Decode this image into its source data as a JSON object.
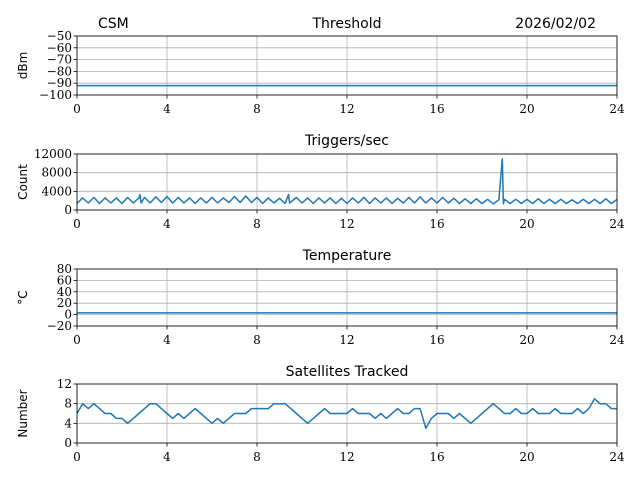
{
  "header": {
    "left": "CSM",
    "right": "2026/02/02"
  },
  "colors": {
    "line": "#1f77b4"
  },
  "chart_data": [
    {
      "type": "line",
      "title": "Threshold",
      "ylabel": "dBm",
      "xlim": [
        0,
        24
      ],
      "ylim": [
        -100,
        -50
      ],
      "xticks": [
        "0",
        "4",
        "8",
        "12",
        "16",
        "20",
        "24"
      ],
      "yticks": [
        "−50",
        "−60",
        "−70",
        "−80",
        "−90",
        "−100"
      ],
      "ytick_values": [
        -50,
        -60,
        -70,
        -80,
        -90,
        -100
      ],
      "x": [
        0,
        24
      ],
      "y": [
        -92,
        -92
      ],
      "linewidth": 3
    },
    {
      "type": "line",
      "title": "Triggers/sec",
      "ylabel": "Count",
      "xlim": [
        0,
        24
      ],
      "ylim": [
        0,
        12000
      ],
      "xticks": [
        "0",
        "4",
        "8",
        "12",
        "16",
        "20",
        "24"
      ],
      "yticks": [
        "12000",
        "8000",
        "4000",
        "0"
      ],
      "ytick_values": [
        12000,
        8000,
        4000,
        0
      ],
      "x": [
        0,
        0.25,
        0.5,
        0.75,
        1,
        1.25,
        1.5,
        1.75,
        2,
        2.25,
        2.5,
        2.75,
        2.8,
        2.85,
        3,
        3.25,
        3.5,
        3.75,
        4,
        4.25,
        4.5,
        4.75,
        5,
        5.25,
        5.5,
        5.75,
        6,
        6.25,
        6.5,
        6.75,
        7,
        7.25,
        7.5,
        7.75,
        8,
        8.25,
        8.5,
        8.75,
        9,
        9.25,
        9.4,
        9.45,
        9.75,
        10,
        10.25,
        10.5,
        10.75,
        11,
        11.25,
        11.5,
        11.75,
        12,
        12.25,
        12.5,
        12.75,
        13,
        13.25,
        13.5,
        13.75,
        14,
        14.25,
        14.5,
        14.75,
        15,
        15.25,
        15.5,
        15.75,
        16,
        16.25,
        16.5,
        16.75,
        17,
        17.25,
        17.5,
        17.75,
        18,
        18.25,
        18.5,
        18.75,
        18.9,
        18.95,
        19,
        19.25,
        19.5,
        19.75,
        20,
        20.25,
        20.5,
        20.75,
        21,
        21.25,
        21.5,
        21.75,
        22,
        22.25,
        22.5,
        22.75,
        23,
        23.25,
        23.5,
        23.75,
        24
      ],
      "y": [
        1400,
        2600,
        1500,
        2700,
        1400,
        2600,
        1500,
        2600,
        1400,
        2700,
        1500,
        2600,
        3300,
        1500,
        2700,
        1500,
        2800,
        1600,
        2900,
        1500,
        2700,
        1500,
        2600,
        1400,
        2600,
        1500,
        2700,
        1500,
        2600,
        1600,
        2900,
        1600,
        3000,
        1600,
        2700,
        1400,
        2600,
        1500,
        2500,
        1400,
        3300,
        1500,
        2700,
        1500,
        2600,
        1400,
        2600,
        1500,
        2600,
        1400,
        2500,
        1400,
        2600,
        1500,
        2700,
        1400,
        2600,
        1500,
        2600,
        1400,
        2500,
        1500,
        2700,
        1500,
        2800,
        1500,
        2600,
        1500,
        2700,
        1500,
        2500,
        1400,
        2400,
        1400,
        2400,
        1400,
        2300,
        1300,
        2200,
        11000,
        1300,
        2300,
        1400,
        2300,
        1400,
        2300,
        1400,
        2400,
        1400,
        2300,
        1400,
        2300,
        1400,
        2200,
        1400,
        2300,
        1400,
        2300,
        1400,
        2400,
        1400,
        2300
      ],
      "linewidth": 1.5
    },
    {
      "type": "line",
      "title": "Temperature",
      "ylabel": "°C",
      "xlim": [
        0,
        24
      ],
      "ylim": [
        -20,
        80
      ],
      "xticks": [
        "0",
        "4",
        "8",
        "12",
        "16",
        "20",
        "24"
      ],
      "yticks": [
        "80",
        "60",
        "40",
        "20",
        "0",
        "−20"
      ],
      "ytick_values": [
        80,
        60,
        40,
        20,
        0,
        -20
      ],
      "x": [
        0,
        24
      ],
      "y": [
        3,
        3
      ],
      "linewidth": 1.5
    },
    {
      "type": "line",
      "title": "Satellites Tracked",
      "ylabel": "Number",
      "xlim": [
        0,
        24
      ],
      "ylim": [
        0,
        12
      ],
      "xticks": [
        "0",
        "4",
        "8",
        "12",
        "16",
        "20",
        "24"
      ],
      "yticks": [
        "12",
        "8",
        "4",
        "0"
      ],
      "ytick_values": [
        12,
        8,
        4,
        0
      ],
      "x": [
        0,
        0.25,
        0.5,
        0.75,
        1,
        1.25,
        1.5,
        1.75,
        2,
        2.25,
        2.5,
        2.75,
        3,
        3.25,
        3.5,
        3.75,
        4,
        4.25,
        4.5,
        4.75,
        5,
        5.25,
        5.5,
        5.75,
        6,
        6.25,
        6.5,
        6.75,
        7,
        7.25,
        7.5,
        7.75,
        8,
        8.25,
        8.5,
        8.75,
        9,
        9.25,
        9.5,
        9.75,
        10,
        10.25,
        10.5,
        10.75,
        11,
        11.25,
        11.5,
        11.75,
        12,
        12.25,
        12.5,
        12.75,
        13,
        13.25,
        13.5,
        13.75,
        14,
        14.25,
        14.5,
        14.75,
        15,
        15.25,
        15.5,
        15.75,
        16,
        16.25,
        16.5,
        16.75,
        17,
        17.25,
        17.5,
        17.75,
        18,
        18.25,
        18.5,
        18.75,
        19,
        19.25,
        19.5,
        19.75,
        20,
        20.25,
        20.5,
        20.75,
        21,
        21.25,
        21.5,
        21.75,
        22,
        22.25,
        22.5,
        22.75,
        23,
        23.25,
        23.5,
        23.75,
        24
      ],
      "y": [
        6,
        8,
        7,
        8,
        7,
        6,
        6,
        5,
        5,
        4,
        5,
        6,
        7,
        8,
        8,
        7,
        6,
        5,
        6,
        5,
        6,
        7,
        6,
        5,
        4,
        5,
        4,
        5,
        6,
        6,
        6,
        7,
        7,
        7,
        7,
        8,
        8,
        8,
        7,
        6,
        5,
        4,
        5,
        6,
        7,
        6,
        6,
        6,
        6,
        7,
        6,
        6,
        6,
        5,
        6,
        5,
        6,
        7,
        6,
        6,
        7,
        7,
        3,
        5,
        6,
        6,
        6,
        5,
        6,
        5,
        4,
        5,
        6,
        7,
        8,
        7,
        6,
        6,
        7,
        6,
        6,
        7,
        6,
        6,
        6,
        7,
        6,
        6,
        6,
        7,
        6,
        7,
        9,
        8,
        8,
        7,
        7
      ],
      "linewidth": 1.5
    }
  ]
}
